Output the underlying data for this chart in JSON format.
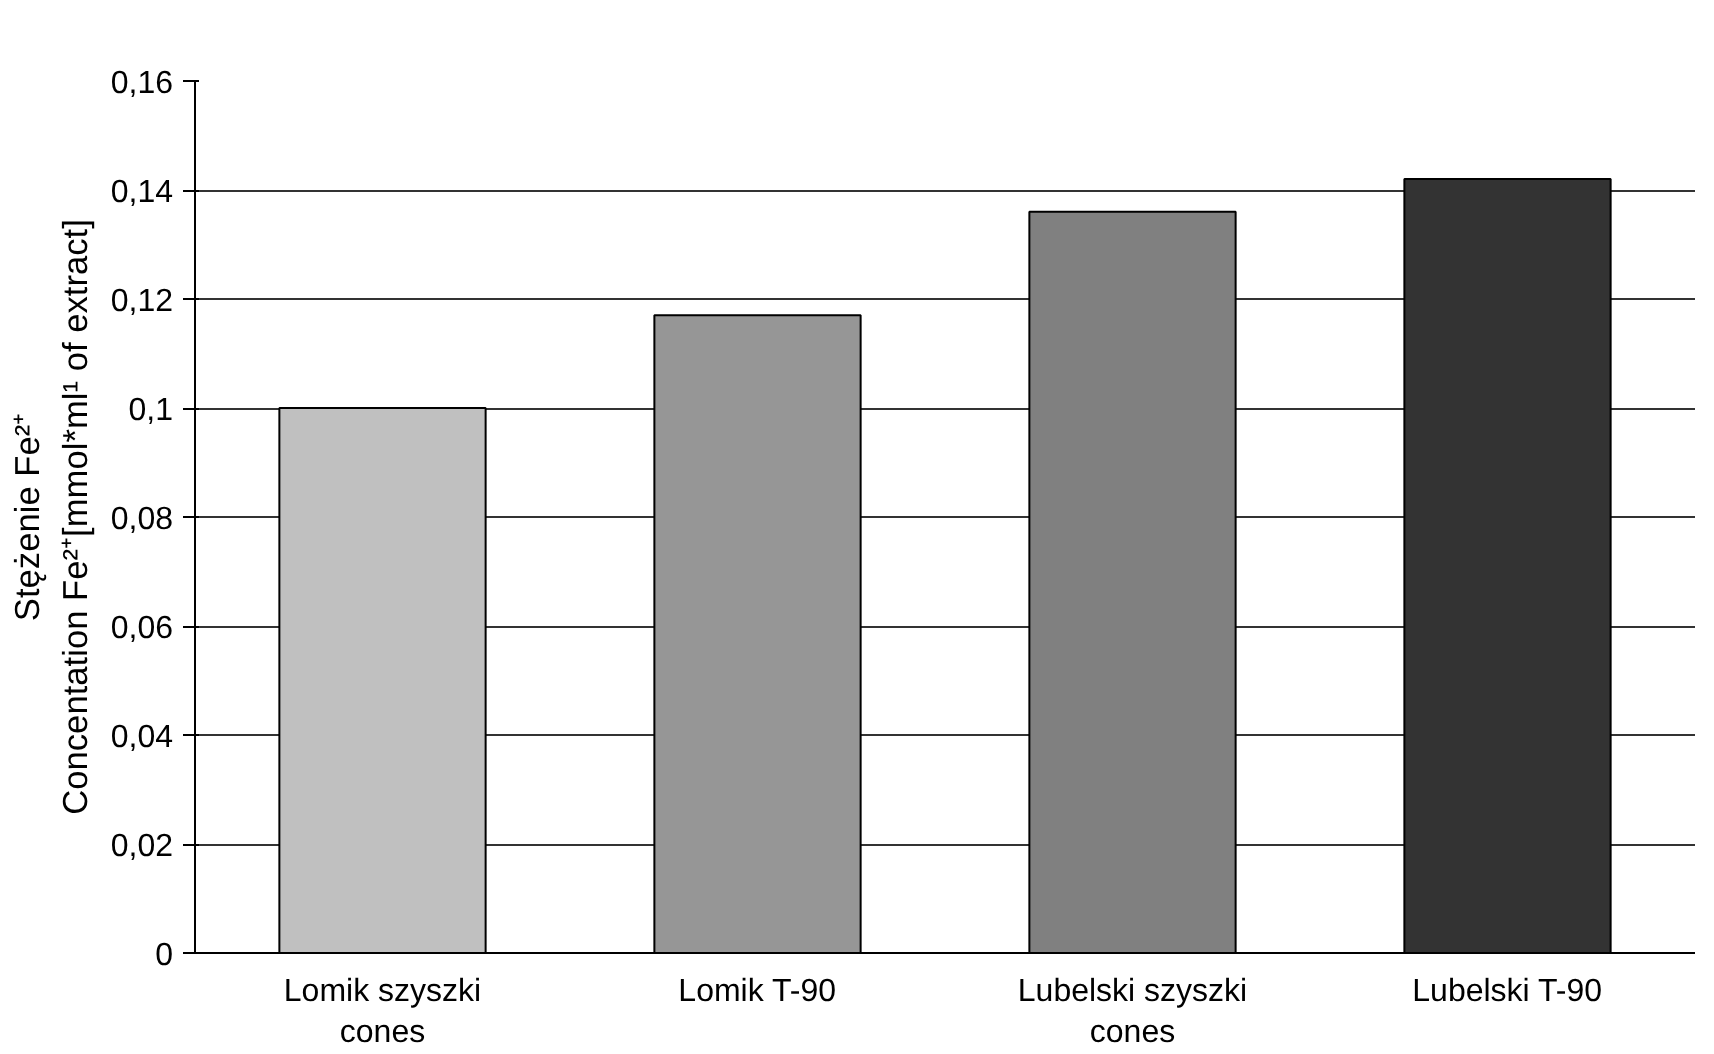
{
  "chart_data": {
    "type": "bar",
    "ylabel": "Stężenie Fe²⁺\nConcentation Fe²⁺[mmol*ml¹ of extract]",
    "categories": [
      "Lomik szyszki\ncones",
      "Lomik T-90",
      "Lubelski szyszki\ncones",
      "Lubelski T-90"
    ],
    "values": [
      0.1,
      0.117,
      0.136,
      0.142
    ],
    "colors": [
      "#c0c0c0",
      "#969696",
      "#808080",
      "#333333"
    ],
    "ylim": [
      0,
      0.16
    ],
    "yticks": [
      {
        "value": 0,
        "label": "0"
      },
      {
        "value": 0.02,
        "label": "0,02"
      },
      {
        "value": 0.04,
        "label": "0,04"
      },
      {
        "value": 0.06,
        "label": "0,06"
      },
      {
        "value": 0.08,
        "label": "0,08"
      },
      {
        "value": 0.1,
        "label": "0,1"
      },
      {
        "value": 0.12,
        "label": "0,12"
      },
      {
        "value": 0.14,
        "label": "0,14"
      },
      {
        "value": 0.16,
        "label": "0,16"
      }
    ],
    "grid": "y"
  }
}
